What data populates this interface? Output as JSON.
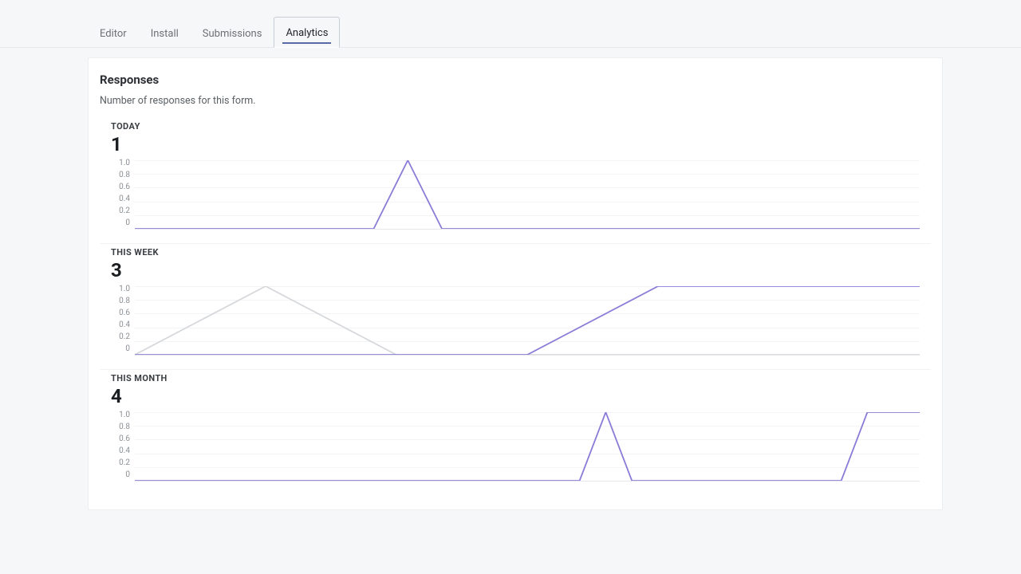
{
  "tabs": [
    {
      "label": "Editor",
      "active": false
    },
    {
      "label": "Install",
      "active": false
    },
    {
      "label": "Submissions",
      "active": false
    },
    {
      "label": "Analytics",
      "active": true
    }
  ],
  "card": {
    "title": "Responses",
    "description": "Number of responses for this form."
  },
  "chart_style": {
    "primary_color": "#8b7cd8",
    "secondary_color": "#d6d8db",
    "line_width": 1.8,
    "grid_color": "#f3f4f6",
    "axis_color": "#e5e7ea",
    "ylabel_color": "#8a8f94",
    "ylabel_fontsize": 10,
    "ylim": [
      0,
      1
    ],
    "yticks": [
      "1.0",
      "0.8",
      "0.6",
      "0.4",
      "0.2",
      "0"
    ]
  },
  "sections": [
    {
      "label": "TODAY",
      "value": "1",
      "series": [
        {
          "color": "primary",
          "points": [
            [
              0,
              0
            ],
            [
              7,
              0
            ],
            [
              8,
              1
            ],
            [
              9,
              0
            ],
            [
              23,
              0
            ]
          ]
        }
      ],
      "x_max": 23
    },
    {
      "label": "THIS WEEK",
      "value": "3",
      "series": [
        {
          "color": "secondary",
          "points": [
            [
              0,
              0
            ],
            [
              1,
              1
            ],
            [
              2,
              0
            ],
            [
              6,
              0
            ]
          ]
        },
        {
          "color": "primary",
          "points": [
            [
              0,
              0
            ],
            [
              3,
              0
            ],
            [
              4,
              1
            ],
            [
              6,
              1
            ]
          ]
        }
      ],
      "x_max": 6
    },
    {
      "label": "THIS MONTH",
      "value": "4",
      "series": [
        {
          "color": "primary",
          "points": [
            [
              0,
              0
            ],
            [
              17,
              0
            ],
            [
              18,
              1
            ],
            [
              19,
              0
            ],
            [
              27,
              0
            ],
            [
              28,
              1
            ],
            [
              30,
              1
            ]
          ]
        }
      ],
      "x_max": 30
    }
  ]
}
